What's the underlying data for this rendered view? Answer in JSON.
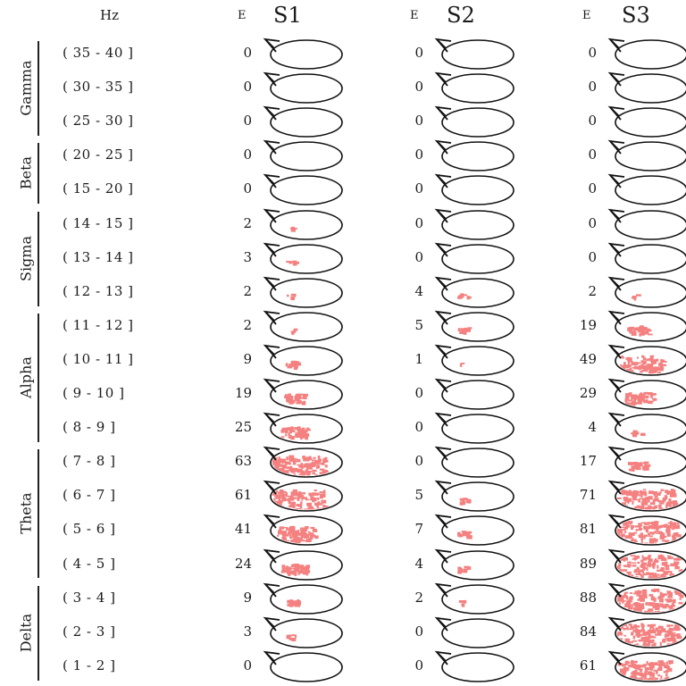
{
  "hz_header": "Hz",
  "bands": [
    {
      "name": "Gamma",
      "first_row": 0,
      "last_row": 2
    },
    {
      "name": "Beta",
      "first_row": 3,
      "last_row": 4
    },
    {
      "name": "Sigma",
      "first_row": 5,
      "last_row": 7
    },
    {
      "name": "Alpha",
      "first_row": 8,
      "last_row": 11
    },
    {
      "name": "Theta",
      "first_row": 12,
      "last_row": 15
    },
    {
      "name": "Delta",
      "first_row": 16,
      "last_row": 18
    }
  ],
  "ranges": [
    "( 35 - 40 ]",
    "( 30 - 35 ]",
    "( 25 - 30 ]",
    "( 20 - 25 ]",
    "( 15 - 20 ]",
    "( 14 - 15 ]",
    "( 13 - 14 ]",
    "( 12 - 13 ]",
    "( 11 - 12 ]",
    "( 10 - 11 ]",
    "( 9 - 10 ]",
    "( 8 - 9 ]",
    "( 7 - 8 ]",
    "( 6 - 7 ]",
    "( 5 - 6 ]",
    "( 4 - 5 ]",
    "( 3 - 4 ]",
    "( 2 - 3 ]",
    "( 1 - 2 ]"
  ],
  "subjects": [
    {
      "title": "S1",
      "e_label": "E",
      "values": [
        0,
        0,
        0,
        0,
        0,
        2,
        3,
        2,
        2,
        9,
        19,
        25,
        63,
        61,
        41,
        24,
        9,
        3,
        0
      ]
    },
    {
      "title": "S2",
      "e_label": "E",
      "values": [
        0,
        0,
        0,
        0,
        0,
        0,
        0,
        4,
        5,
        1,
        0,
        0,
        0,
        5,
        7,
        4,
        2,
        0,
        0
      ]
    },
    {
      "title": "S3",
      "e_label": "E",
      "values": [
        0,
        0,
        0,
        0,
        0,
        0,
        0,
        2,
        19,
        49,
        29,
        4,
        17,
        71,
        81,
        89,
        88,
        84,
        61
      ]
    }
  ],
  "colors": {
    "activation": "#f48080",
    "outline": "#111111"
  }
}
